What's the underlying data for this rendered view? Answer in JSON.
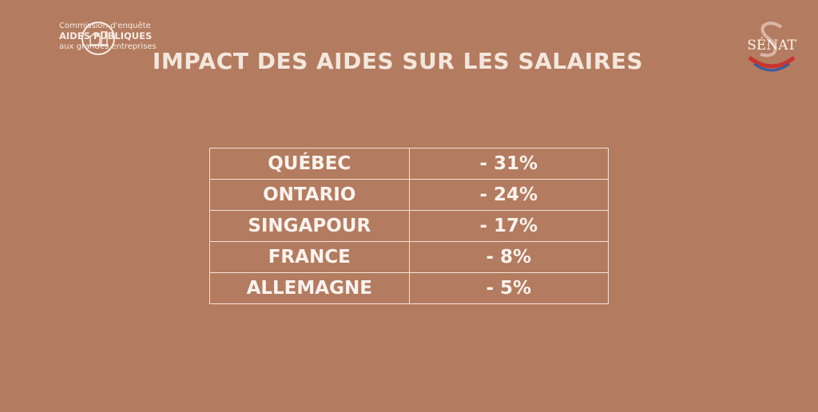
{
  "header": {
    "logo": {
      "line1": "Commission d'enquête",
      "line2": "AIDES PUBLIQUES",
      "line3": "aux grandes entreprises"
    },
    "senate": "SÉNAT"
  },
  "title": "IMPACT DES AIDES SUR LES SALAIRES",
  "table": {
    "rows": [
      [
        "QUÉBEC",
        "- 31%"
      ],
      [
        "ONTARIO",
        "- 24%"
      ],
      [
        "SINGAPOUR",
        "- 17%"
      ],
      [
        "FRANCE",
        "- 8%"
      ],
      [
        "ALLEMAGNE",
        "- 5%"
      ]
    ]
  }
}
